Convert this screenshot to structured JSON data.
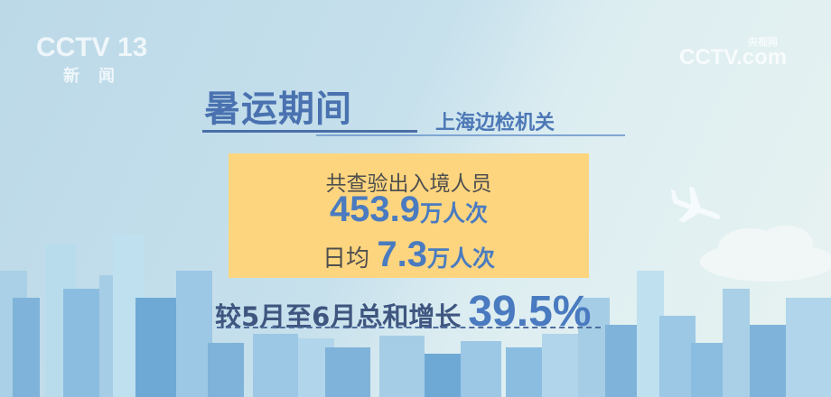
{
  "channel_logo": {
    "text": "CCTV 13",
    "subtitle": "新 闻"
  },
  "watermark": {
    "text": "CCTV.com",
    "subtitle": "央视网"
  },
  "headline": {
    "title": "暑运期间",
    "subtitle": "上海边检机关"
  },
  "stats": {
    "line1": "共查验出入境人员",
    "total_value": "453.9",
    "total_unit": "万人次",
    "daily_label": "日均",
    "daily_value": "7.3",
    "daily_unit": "万人次"
  },
  "growth": {
    "label": "较5月至6月总和增长",
    "value": "39.5%"
  },
  "colors": {
    "accent_blue": "#4a7bc0",
    "box_yellow": "#fdd57e",
    "sky": "#c6e0ec"
  },
  "icons": [
    "airplane-icon",
    "cloud-icon",
    "city-skyline"
  ]
}
